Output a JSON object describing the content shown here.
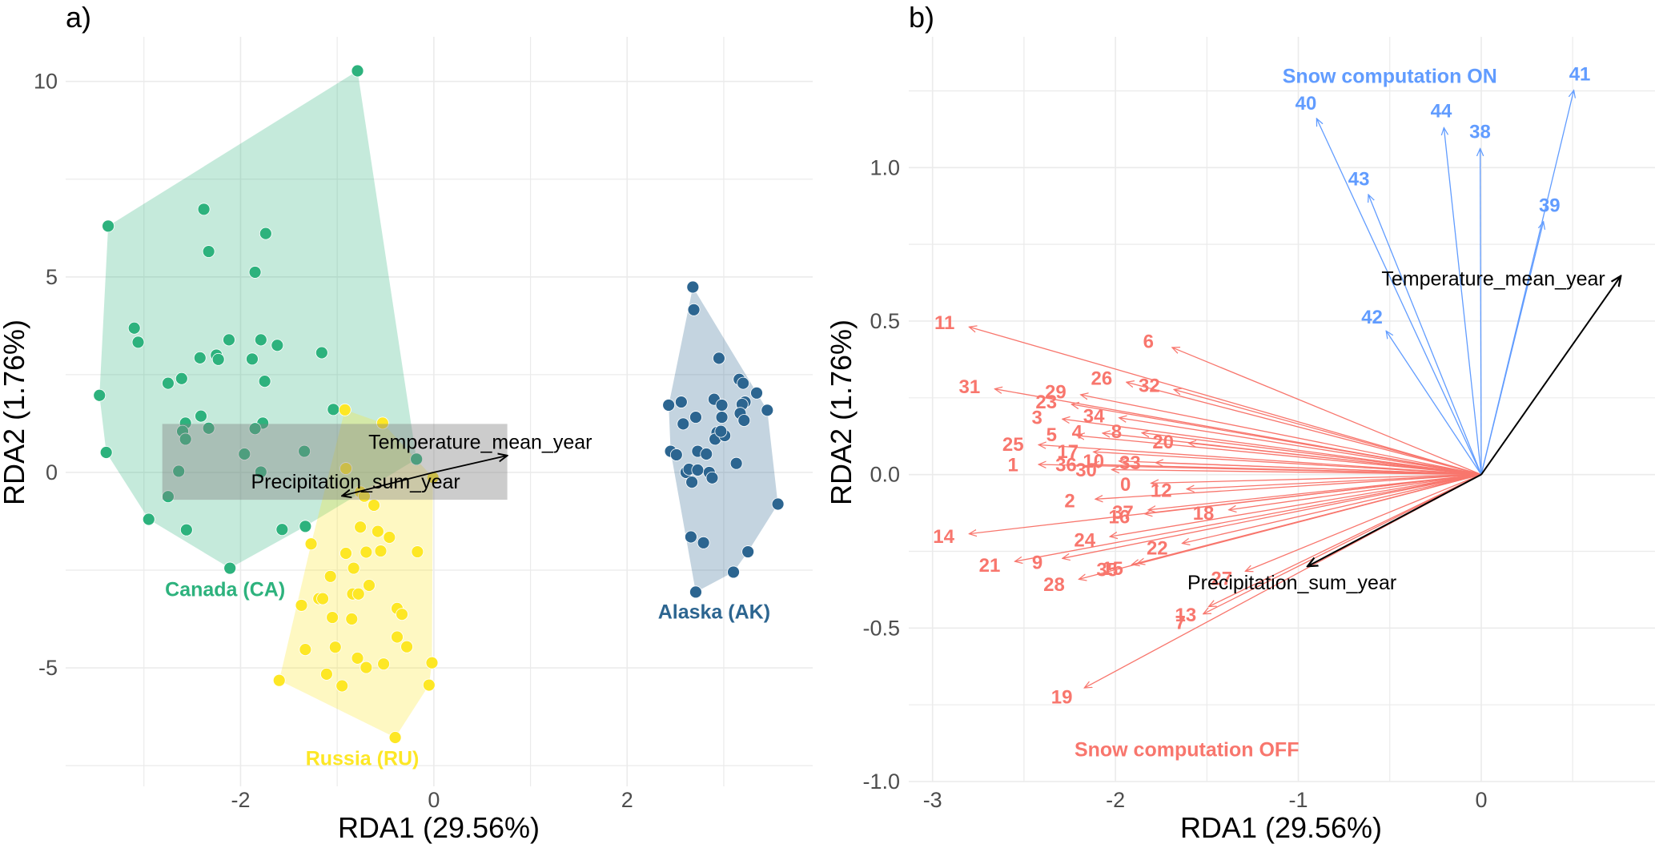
{
  "chart_data": [
    {
      "panel": "a)",
      "type": "scatter",
      "title": "a)",
      "xlabel": "RDA1 (29.56%)",
      "ylabel": "RDA2 (1.76%)",
      "xlim": [
        -3.81,
        3.92
      ],
      "ylim": [
        -8.03,
        11.14
      ],
      "xticks": [
        -2,
        0,
        2
      ],
      "xtick_labels": [
        "-2",
        "0",
        "2"
      ],
      "yticks": [
        -5,
        0,
        5,
        10
      ],
      "ytick_labels": [
        "-5",
        "0",
        "5",
        "10"
      ],
      "x_minor": [
        -3,
        -1,
        1,
        3
      ],
      "y_minor": [
        -7.5,
        -2.5,
        2.5,
        7.5
      ],
      "grid": true,
      "hulls": true,
      "groups": [
        {
          "name": "Canada (CA)",
          "color": "#2DB27D",
          "label_pos": [
            -2.16,
            -2.98
          ],
          "points": [
            [
              -0.79,
              10.27
            ],
            [
              -3.37,
              6.3
            ],
            [
              -2.38,
              6.73
            ],
            [
              -1.74,
              6.11
            ],
            [
              -2.33,
              5.65
            ],
            [
              -1.85,
              5.12
            ],
            [
              -3.1,
              3.69
            ],
            [
              -3.06,
              3.33
            ],
            [
              -2.12,
              3.39
            ],
            [
              -1.79,
              3.39
            ],
            [
              -1.62,
              3.25
            ],
            [
              -1.16,
              3.06
            ],
            [
              -2.42,
              2.93
            ],
            [
              -2.25,
              3.0
            ],
            [
              -2.23,
              2.89
            ],
            [
              -1.88,
              2.9
            ],
            [
              -2.61,
              2.4
            ],
            [
              -2.75,
              2.28
            ],
            [
              -1.75,
              2.33
            ],
            [
              -3.46,
              1.97
            ],
            [
              -1.04,
              1.61
            ],
            [
              -2.41,
              1.44
            ],
            [
              -2.57,
              1.26
            ],
            [
              -1.77,
              1.26
            ],
            [
              -2.6,
              1.05
            ],
            [
              -2.57,
              0.85
            ],
            [
              -2.33,
              1.13
            ],
            [
              -1.85,
              1.12
            ],
            [
              -3.39,
              0.51
            ],
            [
              -1.96,
              0.47
            ],
            [
              -1.34,
              0.54
            ],
            [
              -0.18,
              0.34
            ],
            [
              -2.64,
              0.03
            ],
            [
              -1.79,
              0.01
            ],
            [
              -2.75,
              -0.62
            ],
            [
              -2.95,
              -1.2
            ],
            [
              -2.56,
              -1.47
            ],
            [
              -1.57,
              -1.46
            ],
            [
              -1.33,
              -1.38
            ],
            [
              -2.11,
              -2.45
            ]
          ]
        },
        {
          "name": "Russia (RU)",
          "color": "#FDE725",
          "label_pos": [
            -0.74,
            -7.3
          ],
          "points": [
            [
              -0.92,
              1.6
            ],
            [
              -0.53,
              1.26
            ],
            [
              -0.91,
              0.1
            ],
            [
              -0.01,
              -0.13
            ],
            [
              -0.76,
              -0.5
            ],
            [
              -0.72,
              -0.61
            ],
            [
              -0.62,
              -0.84
            ],
            [
              -0.76,
              -1.4
            ],
            [
              -0.58,
              -1.51
            ],
            [
              -0.46,
              -1.66
            ],
            [
              -1.27,
              -1.83
            ],
            [
              -0.91,
              -2.07
            ],
            [
              -0.7,
              -2.04
            ],
            [
              -0.55,
              -2.01
            ],
            [
              -0.17,
              -2.03
            ],
            [
              -0.83,
              -2.45
            ],
            [
              -1.07,
              -2.66
            ],
            [
              -0.67,
              -2.89
            ],
            [
              -1.19,
              -3.23
            ],
            [
              -1.15,
              -3.23
            ],
            [
              -0.84,
              -3.11
            ],
            [
              -0.78,
              -3.11
            ],
            [
              -1.37,
              -3.4
            ],
            [
              -0.38,
              -3.48
            ],
            [
              -0.33,
              -3.63
            ],
            [
              -1.05,
              -3.71
            ],
            [
              -0.85,
              -3.75
            ],
            [
              -0.38,
              -4.21
            ],
            [
              -0.28,
              -4.46
            ],
            [
              -1.33,
              -4.53
            ],
            [
              -1.02,
              -4.47
            ],
            [
              -0.79,
              -4.75
            ],
            [
              -0.7,
              -4.99
            ],
            [
              -0.52,
              -4.9
            ],
            [
              -0.02,
              -4.87
            ],
            [
              -1.6,
              -5.32
            ],
            [
              -1.11,
              -5.16
            ],
            [
              -0.95,
              -5.46
            ],
            [
              -0.05,
              -5.44
            ],
            [
              -0.4,
              -6.78
            ]
          ]
        },
        {
          "name": "Alaska (AK)",
          "color": "#2C6590",
          "label_pos": [
            2.9,
            -3.56
          ],
          "points": [
            [
              2.68,
              4.74
            ],
            [
              2.69,
              4.16
            ],
            [
              2.95,
              2.92
            ],
            [
              3.16,
              2.38
            ],
            [
              3.2,
              2.28
            ],
            [
              3.34,
              2.03
            ],
            [
              2.43,
              1.72
            ],
            [
              2.56,
              1.8
            ],
            [
              2.9,
              1.87
            ],
            [
              2.98,
              1.72
            ],
            [
              3.22,
              1.8
            ],
            [
              3.19,
              1.74
            ],
            [
              3.45,
              1.59
            ],
            [
              2.71,
              1.41
            ],
            [
              2.58,
              1.24
            ],
            [
              2.98,
              1.41
            ],
            [
              3.17,
              1.51
            ],
            [
              3.21,
              1.33
            ],
            [
              2.93,
              1.02
            ],
            [
              2.91,
              0.85
            ],
            [
              3.01,
              0.94
            ],
            [
              2.97,
              1.05
            ],
            [
              2.45,
              0.54
            ],
            [
              2.51,
              0.45
            ],
            [
              2.73,
              0.54
            ],
            [
              2.82,
              0.47
            ],
            [
              3.13,
              0.23
            ],
            [
              2.61,
              0.0
            ],
            [
              2.64,
              0.08
            ],
            [
              2.73,
              0.06
            ],
            [
              2.85,
              0.0
            ],
            [
              2.88,
              -0.14
            ],
            [
              2.67,
              -0.25
            ],
            [
              3.56,
              -0.81
            ],
            [
              2.66,
              -1.65
            ],
            [
              2.79,
              -1.8
            ],
            [
              3.25,
              -2.03
            ],
            [
              3.1,
              -2.55
            ],
            [
              2.71,
              -3.06
            ]
          ]
        }
      ],
      "highlight_box": {
        "x": [
          -2.81,
          0.76
        ],
        "y": [
          -0.7,
          1.24
        ],
        "color": "#808080",
        "opacity": 0.4
      },
      "vectors": [
        {
          "name": "Temperature_mean_year",
          "x": 0.76,
          "y": 0.43,
          "label_pos": [
            0.48,
            0.79
          ]
        },
        {
          "name": "Precipitation_sum_year",
          "x": -0.95,
          "y": -0.6,
          "label_pos": [
            -0.81,
            -0.23
          ]
        }
      ]
    },
    {
      "panel": "b)",
      "type": "biplot",
      "title": "b)",
      "xlabel": "RDA1 (29.56%)",
      "ylabel": "RDA2 (1.76%)",
      "xlim": [
        -3.13,
        0.95
      ],
      "ylim": [
        -1.0,
        1.426
      ],
      "xticks": [
        -3,
        -2,
        -1,
        0
      ],
      "xtick_labels": [
        "-3",
        "-2",
        "-1",
        "0"
      ],
      "yticks": [
        -1.0,
        -0.5,
        0.0,
        0.5,
        1.0
      ],
      "ytick_labels": [
        "-1.0",
        "-0.5",
        "0.0",
        "0.5",
        "1.0"
      ],
      "x_minor": [
        -2.5,
        -1.5,
        -0.5,
        0.5
      ],
      "y_minor": [
        -0.75,
        -0.25,
        0.25,
        0.75,
        1.25
      ],
      "grid": true,
      "groups": [
        {
          "name": "Snow computation OFF",
          "color": "#F8766D",
          "label_pos": [
            -1.61,
            -0.895
          ],
          "vectors": [
            {
              "id": "0",
              "x": -1.805,
              "y": -0.028
            },
            {
              "id": "1",
              "x": -2.42,
              "y": 0.033
            },
            {
              "id": "2",
              "x": -2.11,
              "y": -0.08
            },
            {
              "id": "3",
              "x": -2.29,
              "y": 0.181
            },
            {
              "id": "4",
              "x": -2.07,
              "y": 0.135
            },
            {
              "id": "5",
              "x": -2.21,
              "y": 0.127
            },
            {
              "id": "6",
              "x": -1.69,
              "y": 0.414
            },
            {
              "id": "7",
              "x": -1.52,
              "y": -0.454
            },
            {
              "id": "8",
              "x": -1.855,
              "y": 0.136
            },
            {
              "id": "9",
              "x": -2.29,
              "y": -0.273
            },
            {
              "id": "10",
              "x": -1.98,
              "y": 0.044
            },
            {
              "id": "11",
              "x": -2.8,
              "y": 0.481
            },
            {
              "id": "12",
              "x": -1.61,
              "y": -0.047
            },
            {
              "id": "13",
              "x": -1.49,
              "y": -0.43
            },
            {
              "id": "14",
              "x": -2.8,
              "y": -0.193
            },
            {
              "id": "15",
              "x": -1.88,
              "y": -0.289
            },
            {
              "id": "16",
              "x": -1.84,
              "y": -0.128
            },
            {
              "id": "17",
              "x": -2.12,
              "y": 0.074
            },
            {
              "id": "18",
              "x": -1.38,
              "y": -0.115
            },
            {
              "id": "19",
              "x": -2.17,
              "y": -0.695
            },
            {
              "id": "20",
              "x": -1.6,
              "y": 0.103
            },
            {
              "id": "21",
              "x": -2.55,
              "y": -0.283
            },
            {
              "id": "22",
              "x": -1.635,
              "y": -0.224
            },
            {
              "id": "23",
              "x": -2.24,
              "y": 0.229
            },
            {
              "id": "24",
              "x": -2.03,
              "y": -0.202
            },
            {
              "id": "25",
              "x": -2.42,
              "y": 0.097
            },
            {
              "id": "26",
              "x": -1.94,
              "y": 0.301
            },
            {
              "id": "27",
              "x": -1.29,
              "y": -0.315
            },
            {
              "id": "28",
              "x": -2.2,
              "y": -0.341
            },
            {
              "id": "29",
              "x": -2.19,
              "y": 0.26
            },
            {
              "id": "30",
              "x": -2.02,
              "y": 0.016
            },
            {
              "id": "31",
              "x": -2.66,
              "y": 0.279
            },
            {
              "id": "32",
              "x": -1.68,
              "y": 0.277
            },
            {
              "id": "33",
              "x": -1.78,
              "y": 0.039
            },
            {
              "id": "34",
              "x": -1.98,
              "y": 0.185
            },
            {
              "id": "35",
              "x": -1.91,
              "y": -0.293
            },
            {
              "id": "36",
              "x": -2.13,
              "y": 0.033
            },
            {
              "id": "37",
              "x": -1.82,
              "y": -0.115
            }
          ]
        },
        {
          "name": "Snow computation ON",
          "color": "#619CFF",
          "label_pos": [
            -0.5,
            1.3
          ],
          "vectors": [
            {
              "id": "38",
              "x": -0.006,
              "y": 1.062
            },
            {
              "id": "39",
              "x": 0.34,
              "y": 0.824
            },
            {
              "id": "40",
              "x": -0.9,
              "y": 1.16
            },
            {
              "id": "41",
              "x": 0.506,
              "y": 1.252
            },
            {
              "id": "42",
              "x": -0.52,
              "y": 0.468
            },
            {
              "id": "43",
              "x": -0.617,
              "y": 0.912
            },
            {
              "id": "44",
              "x": -0.204,
              "y": 1.13
            }
          ]
        }
      ],
      "env_vectors": [
        {
          "name": "Temperature_mean_year",
          "x": 0.763,
          "y": 0.647,
          "label_pos": [
            0.066,
            0.64
          ]
        },
        {
          "name": "Precipitation_sum_year",
          "x": -0.95,
          "y": -0.299,
          "label_pos": [
            -1.035,
            -0.351
          ]
        }
      ]
    }
  ]
}
